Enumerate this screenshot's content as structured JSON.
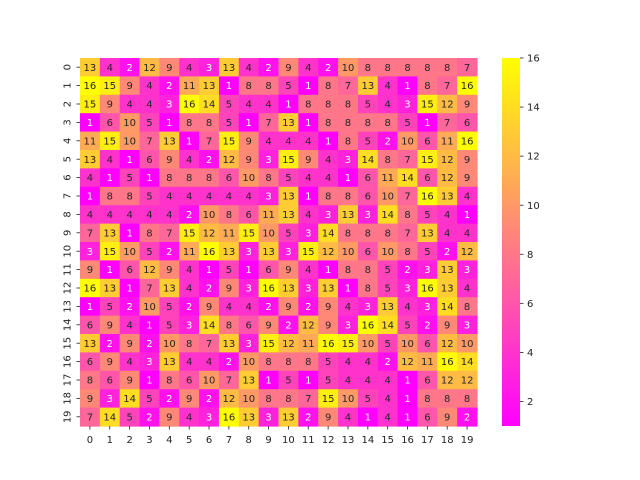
{
  "chart_data": {
    "type": "heatmap",
    "title": "",
    "xlabel": "",
    "ylabel": "",
    "x_categories": [
      "0",
      "1",
      "2",
      "3",
      "4",
      "5",
      "6",
      "7",
      "8",
      "9",
      "10",
      "11",
      "12",
      "13",
      "14",
      "15",
      "16",
      "17",
      "18",
      "19"
    ],
    "y_categories": [
      "0",
      "1",
      "2",
      "3",
      "4",
      "5",
      "6",
      "7",
      "8",
      "9",
      "10",
      "11",
      "12",
      "13",
      "14",
      "15",
      "16",
      "17",
      "18",
      "19"
    ],
    "values": [
      [
        13,
        4,
        2,
        12,
        9,
        4,
        3,
        13,
        4,
        2,
        9,
        4,
        2,
        10,
        8,
        8,
        8,
        8,
        8,
        7
      ],
      [
        16,
        15,
        9,
        4,
        2,
        11,
        13,
        1,
        8,
        8,
        5,
        1,
        8,
        7,
        13,
        4,
        1,
        8,
        7,
        16
      ],
      [
        15,
        9,
        4,
        4,
        3,
        16,
        14,
        5,
        4,
        4,
        1,
        8,
        8,
        8,
        5,
        4,
        3,
        15,
        12,
        9
      ],
      [
        1,
        6,
        10,
        5,
        1,
        8,
        8,
        5,
        1,
        7,
        13,
        1,
        8,
        8,
        8,
        8,
        5,
        1,
        7,
        6
      ],
      [
        11,
        15,
        10,
        7,
        13,
        1,
        7,
        15,
        9,
        4,
        4,
        4,
        1,
        8,
        5,
        2,
        10,
        6,
        11,
        16
      ],
      [
        13,
        4,
        1,
        6,
        9,
        4,
        2,
        12,
        9,
        3,
        15,
        9,
        4,
        3,
        14,
        8,
        7,
        15,
        12,
        9
      ],
      [
        4,
        1,
        5,
        1,
        8,
        8,
        8,
        6,
        10,
        8,
        5,
        4,
        4,
        1,
        6,
        11,
        14,
        6,
        12,
        9
      ],
      [
        1,
        8,
        8,
        5,
        4,
        4,
        4,
        4,
        4,
        3,
        13,
        1,
        8,
        8,
        6,
        10,
        7,
        16,
        13,
        4
      ],
      [
        4,
        4,
        4,
        4,
        4,
        2,
        10,
        8,
        6,
        11,
        13,
        4,
        3,
        13,
        3,
        14,
        8,
        5,
        4,
        1
      ],
      [
        7,
        13,
        1,
        8,
        7,
        15,
        12,
        11,
        15,
        10,
        5,
        3,
        14,
        8,
        8,
        8,
        7,
        13,
        4,
        4
      ],
      [
        3,
        15,
        10,
        5,
        2,
        11,
        16,
        13,
        3,
        13,
        3,
        15,
        12,
        10,
        6,
        10,
        8,
        5,
        2,
        12
      ],
      [
        9,
        1,
        6,
        12,
        9,
        4,
        1,
        5,
        1,
        6,
        9,
        4,
        1,
        8,
        8,
        5,
        2,
        3,
        13,
        3
      ],
      [
        16,
        13,
        1,
        7,
        13,
        4,
        2,
        9,
        3,
        16,
        13,
        3,
        13,
        1,
        8,
        5,
        3,
        16,
        13,
        4
      ],
      [
        1,
        5,
        2,
        10,
        5,
        2,
        9,
        4,
        4,
        2,
        9,
        2,
        9,
        4,
        3,
        13,
        4,
        3,
        14,
        8
      ],
      [
        6,
        9,
        4,
        1,
        5,
        3,
        14,
        8,
        6,
        9,
        2,
        12,
        9,
        3,
        16,
        14,
        5,
        2,
        9,
        3
      ],
      [
        13,
        2,
        9,
        2,
        10,
        8,
        7,
        13,
        3,
        15,
        12,
        11,
        16,
        15,
        10,
        5,
        10,
        6,
        12,
        10
      ],
      [
        6,
        9,
        4,
        3,
        13,
        4,
        4,
        2,
        10,
        8,
        8,
        8,
        5,
        4,
        4,
        2,
        12,
        11,
        16,
        14
      ],
      [
        8,
        6,
        9,
        1,
        8,
        6,
        10,
        7,
        13,
        1,
        5,
        1,
        5,
        4,
        4,
        4,
        1,
        6,
        12,
        12
      ],
      [
        9,
        3,
        14,
        5,
        2,
        9,
        2,
        12,
        10,
        8,
        8,
        7,
        15,
        10,
        5,
        4,
        1,
        8,
        8,
        8
      ],
      [
        7,
        14,
        5,
        2,
        9,
        4,
        3,
        16,
        13,
        3,
        13,
        2,
        9,
        4,
        1,
        4,
        1,
        6,
        9,
        2
      ]
    ],
    "vmin": 1,
    "vmax": 16,
    "colormap": "spring",
    "color_low": "#ff00ff",
    "color_high": "#ffff00",
    "colorbar_ticks": [
      "2",
      "4",
      "6",
      "8",
      "10",
      "12",
      "14",
      "16"
    ],
    "annotate": true,
    "grid": false,
    "legend": "colorbar-right"
  }
}
